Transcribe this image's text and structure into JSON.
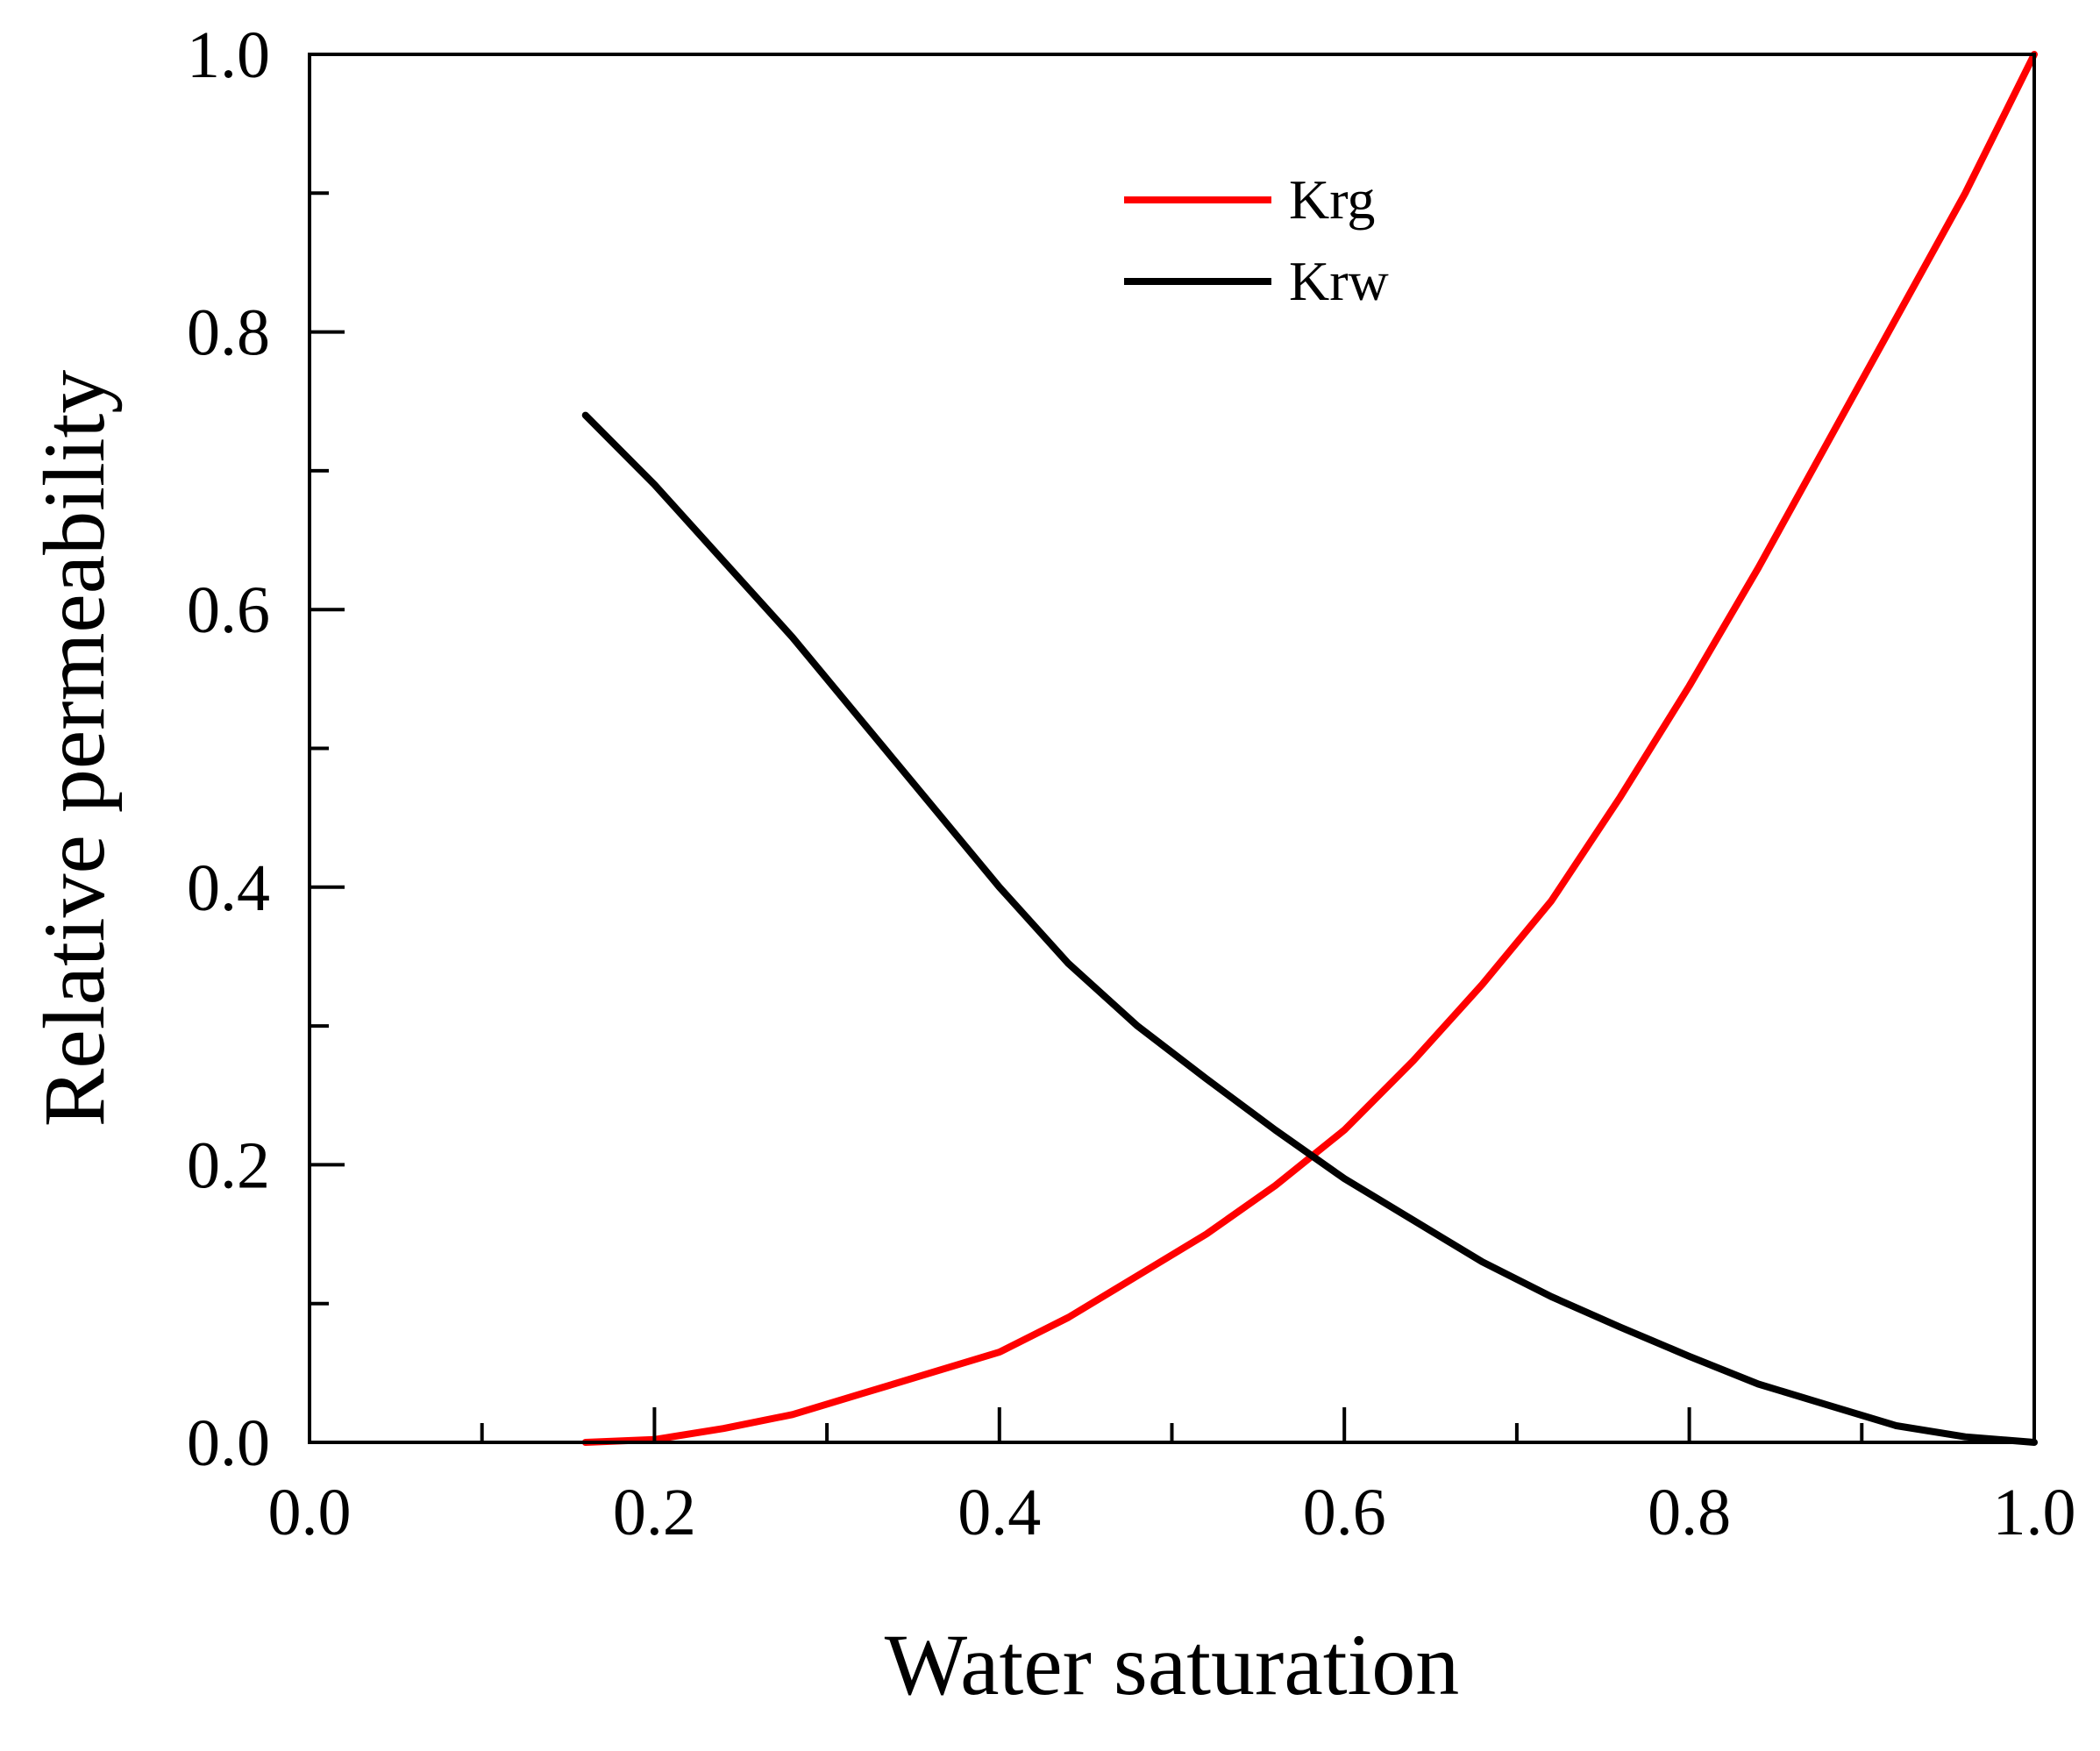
{
  "chart_data": {
    "type": "line",
    "title": "",
    "xlabel": "Water saturation",
    "ylabel": "Relative permeability",
    "xlim": [
      0.0,
      1.0
    ],
    "ylim": [
      0.0,
      1.0
    ],
    "xticks": [
      0.0,
      0.2,
      0.4,
      0.6,
      0.8,
      1.0
    ],
    "xtick_labels": [
      "0.0",
      "0.2",
      "0.4",
      "0.6",
      "0.8",
      "1.0"
    ],
    "yticks": [
      0.0,
      0.2,
      0.4,
      0.6,
      0.8,
      1.0
    ],
    "ytick_labels": [
      "0.0",
      "0.2",
      "0.4",
      "0.6",
      "0.8",
      "1.0"
    ],
    "x_minor_step": 0.1,
    "y_minor_step": 0.1,
    "grid": false,
    "legend_position": "top-center",
    "series": [
      {
        "name": "Krg",
        "color": "#ff0000",
        "x": [
          0.16,
          0.2,
          0.24,
          0.28,
          0.32,
          0.36,
          0.4,
          0.44,
          0.48,
          0.52,
          0.56,
          0.6,
          0.64,
          0.68,
          0.72,
          0.76,
          0.8,
          0.84,
          0.88,
          0.92,
          0.96,
          1.0
        ],
        "y": [
          0.0,
          0.002,
          0.01,
          0.02,
          0.035,
          0.05,
          0.065,
          0.09,
          0.12,
          0.15,
          0.185,
          0.225,
          0.275,
          0.33,
          0.39,
          0.465,
          0.545,
          0.63,
          0.72,
          0.81,
          0.9,
          1.0
        ]
      },
      {
        "name": "Krw",
        "color": "#000000",
        "x": [
          0.16,
          0.2,
          0.24,
          0.28,
          0.32,
          0.36,
          0.4,
          0.44,
          0.48,
          0.52,
          0.56,
          0.6,
          0.64,
          0.68,
          0.72,
          0.76,
          0.8,
          0.84,
          0.88,
          0.92,
          0.96,
          1.0
        ],
        "y": [
          0.74,
          0.69,
          0.635,
          0.58,
          0.52,
          0.46,
          0.4,
          0.345,
          0.3,
          0.262,
          0.225,
          0.19,
          0.16,
          0.13,
          0.105,
          0.083,
          0.062,
          0.042,
          0.027,
          0.012,
          0.004,
          0.0
        ]
      }
    ]
  }
}
